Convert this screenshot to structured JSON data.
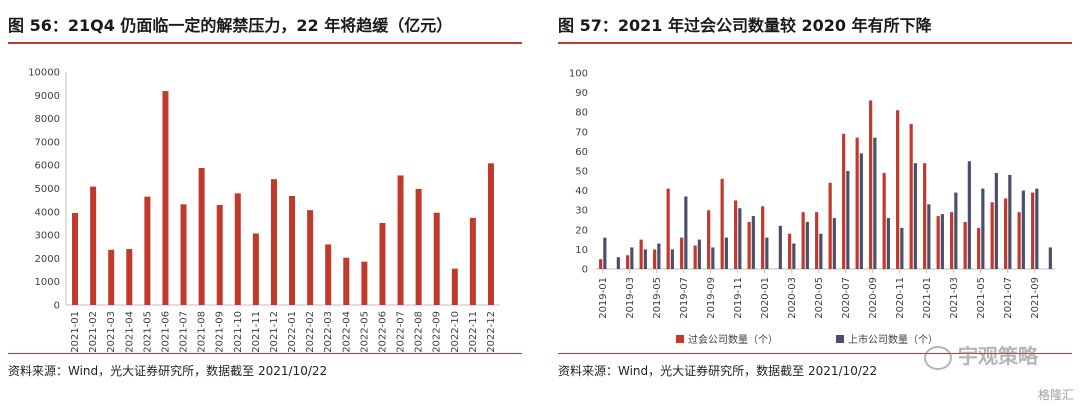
{
  "left_panel": {
    "title": "图 56：21Q4 仍面临一定的解禁压力，22 年将趋缓（亿元）",
    "source": "资料来源：Wind，光大证券研究所，数据截至 2021/10/22"
  },
  "right_panel": {
    "title": "图 57：2021 年过会公司数量较 2020 年有所下降",
    "source": "资料来源：Wind，光大证券研究所，数据截至 2021/10/22",
    "legend": {
      "approved": "过会公司数量（个）",
      "listed": "上市公司数量（个）"
    }
  },
  "watermark": {
    "brand": "宇观策略",
    "tag": "格隆汇"
  },
  "colors": {
    "red": "#c0392b",
    "navy": "#4b4e6d"
  },
  "chart_data": [
    {
      "type": "bar",
      "categories": [
        "2021-01",
        "2021-02",
        "2021-03",
        "2021-04",
        "2021-05",
        "2021-06",
        "2021-07",
        "2021-08",
        "2021-09",
        "2021-10",
        "2021-11",
        "2021-12",
        "2022-01",
        "2022-02",
        "2022-03",
        "2022-04",
        "2022-05",
        "2022-06",
        "2022-07",
        "2022-08",
        "2022-09",
        "2022-10",
        "2022-11",
        "2022-12"
      ],
      "series": [
        {
          "values": [
            3950,
            5080,
            2370,
            2400,
            4650,
            9180,
            4320,
            5880,
            4290,
            4790,
            3070,
            5400,
            4680,
            4070,
            2600,
            2030,
            1860,
            3520,
            5560,
            4980,
            3960,
            1560,
            3740,
            6080
          ]
        }
      ],
      "ylim": [
        0,
        10000
      ],
      "yticks": [
        "0",
        "1000",
        "2000",
        "3000",
        "4000",
        "5000",
        "6000",
        "7000",
        "8000",
        "9000",
        "10000"
      ],
      "grid": false,
      "legend": "none"
    },
    {
      "type": "bar",
      "x": [
        "2019-01",
        "2019-02",
        "2019-03",
        "2019-04",
        "2019-05",
        "2019-06",
        "2019-07",
        "2019-08",
        "2019-09",
        "2019-10",
        "2019-11",
        "2019-12",
        "2020-01",
        "2020-02",
        "2020-03",
        "2020-04",
        "2020-05",
        "2020-06",
        "2020-07",
        "2020-08",
        "2020-09",
        "2020-10",
        "2020-11",
        "2020-12",
        "2021-01",
        "2021-02",
        "2021-03",
        "2021-04",
        "2021-05",
        "2021-06",
        "2021-07",
        "2021-08",
        "2021-09",
        "2021-10"
      ],
      "xtick_labels": [
        "2019-01",
        "2019-03",
        "2019-05",
        "2019-07",
        "2019-09",
        "2019-11",
        "2020-01",
        "2020-03",
        "2020-05",
        "2020-07",
        "2020-09",
        "2020-11",
        "2021-01",
        "2021-03",
        "2021-05",
        "2021-07",
        "2021-09"
      ],
      "series": [
        {
          "name": "过会公司数量（个）",
          "values": [
            5,
            0,
            7,
            15,
            10,
            41,
            16,
            12,
            30,
            46,
            35,
            24,
            32,
            0,
            18,
            29,
            29,
            44,
            69,
            67,
            86,
            49,
            81,
            74,
            54,
            27,
            29,
            24,
            21,
            34,
            36,
            29,
            39,
            0
          ]
        },
        {
          "name": "上市公司数量（个）",
          "values": [
            16,
            6,
            11,
            10,
            13,
            10,
            37,
            15,
            11,
            16,
            31,
            27,
            16,
            22,
            13,
            24,
            18,
            26,
            50,
            59,
            67,
            26,
            21,
            54,
            33,
            28,
            39,
            55,
            41,
            49,
            48,
            40,
            41,
            11
          ]
        }
      ],
      "ylim": [
        0,
        100
      ],
      "yticks": [
        "0",
        "10",
        "20",
        "30",
        "40",
        "50",
        "60",
        "70",
        "80",
        "90",
        "100"
      ],
      "grid": false,
      "legend": "bottom"
    }
  ]
}
